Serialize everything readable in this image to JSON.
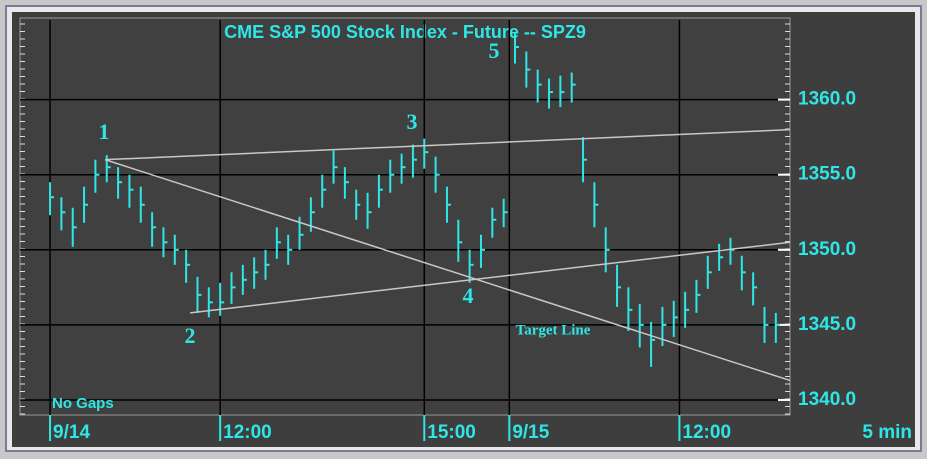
{
  "chart_data": {
    "type": "ohlc",
    "title": "CME  S&P  500  Stock  Index  -  Future  --  SPZ9",
    "x_unit": "5  min",
    "color": "#2fe6e6",
    "grid": true,
    "x": [
      0,
      2,
      4,
      6,
      8,
      10,
      12,
      14,
      16,
      18,
      20,
      22,
      24,
      26,
      28,
      30,
      32,
      34,
      36,
      38,
      40,
      42,
      44,
      46,
      48,
      50,
      52,
      54,
      56,
      58,
      60,
      62,
      64,
      66,
      68,
      70,
      72,
      74,
      76,
      78,
      80,
      82,
      84,
      86,
      88,
      90,
      92,
      94,
      96,
      98,
      100,
      102,
      104,
      106,
      108,
      110,
      112,
      114,
      116,
      118,
      120,
      122,
      124,
      126,
      128
    ],
    "high": [
      1354.5,
      1353.5,
      1352.8,
      1354.2,
      1356,
      1356.3,
      1355.5,
      1355,
      1354.2,
      1352.5,
      1351.5,
      1351,
      1350,
      1348.2,
      1347.5,
      1347.8,
      1348.5,
      1349,
      1349.5,
      1350,
      1351.5,
      1351,
      1352.2,
      1353.5,
      1355,
      1356.6,
      1355.5,
      1354,
      1353.8,
      1355,
      1356,
      1356.4,
      1357,
      1357.4,
      1356.2,
      1354.2,
      1352,
      1350,
      1351,
      1352.8,
      1353.4,
      1364.4,
      1363.2,
      1362,
      1361.4,
      1361.6,
      1361.8,
      1357.5,
      1354.5,
      1351.5,
      1349,
      1347.5,
      1346.4,
      1345.2,
      1346.2,
      1346.6,
      1347.2,
      1348,
      1349.6,
      1350.4,
      1350.8,
      1349.6,
      1348.5,
      1346.2,
      1345.8
    ],
    "low": [
      1352.3,
      1351.3,
      1350.2,
      1351.8,
      1353.8,
      1354.5,
      1353.4,
      1352.8,
      1351.8,
      1350.2,
      1349.5,
      1349,
      1347.8,
      1345.8,
      1345.5,
      1345.6,
      1346.4,
      1347,
      1347.4,
      1348,
      1349.4,
      1349,
      1350,
      1351.2,
      1352.8,
      1354.4,
      1353.4,
      1352,
      1351.4,
      1352.8,
      1353.8,
      1354.4,
      1354.8,
      1355.4,
      1353.8,
      1351.8,
      1349.2,
      1347.8,
      1348.8,
      1350.8,
      1351.5,
      1362.4,
      1360.8,
      1359.8,
      1359.4,
      1359.5,
      1359.8,
      1354.5,
      1351.5,
      1348.5,
      1346.2,
      1344.6,
      1343.5,
      1342.2,
      1343.6,
      1344.2,
      1344.8,
      1345.8,
      1347.4,
      1348.6,
      1349,
      1347.3,
      1346.3,
      1343.8,
      1343.8
    ],
    "close": [
      1353.5,
      1352.5,
      1351.5,
      1353,
      1355,
      1355.5,
      1354.5,
      1354,
      1353,
      1351.5,
      1350.5,
      1350,
      1349,
      1347,
      1346.5,
      1346.5,
      1347.5,
      1348,
      1348.5,
      1349,
      1350.5,
      1350,
      1351,
      1352.5,
      1354,
      1355.5,
      1354.5,
      1353,
      1352.5,
      1354,
      1355,
      1355.5,
      1356,
      1356.5,
      1355,
      1353,
      1350.5,
      1349,
      1350,
      1352,
      1352.5,
      1363.5,
      1362,
      1361,
      1360.5,
      1360.5,
      1361,
      1356,
      1353,
      1350,
      1347.5,
      1346,
      1345,
      1344,
      1345,
      1345.5,
      1346,
      1347,
      1348.5,
      1349.5,
      1350,
      1348.5,
      1347.5,
      1345,
      1345
    ],
    "xlim": [
      -5.3,
      130.5
    ],
    "xticks": [
      {
        "value": 0,
        "label": "9/14"
      },
      {
        "value": 30,
        "label": "12:00"
      },
      {
        "value": 66,
        "label": "15:00"
      },
      {
        "value": 81,
        "label": "9/15"
      },
      {
        "value": 111,
        "label": "12:00"
      }
    ],
    "ylim": [
      1339,
      1365.3
    ],
    "yticks": [
      {
        "value": 1340,
        "label": "1340.0"
      },
      {
        "value": 1345,
        "label": "1345.0"
      },
      {
        "value": 1350,
        "label": "1350.0"
      },
      {
        "value": 1355,
        "label": "1355.0"
      },
      {
        "value": 1360,
        "label": "1360.0"
      }
    ],
    "lines": [
      {
        "x": [
          9.7,
          130.5
        ],
        "y": [
          1356,
          1358
        ]
      },
      {
        "x": [
          24.7,
          130.5
        ],
        "y": [
          1345.8,
          1350.5
        ]
      },
      {
        "x": [
          9.7,
          130.5
        ],
        "y": [
          1356,
          1341.3
        ]
      }
    ],
    "annotations": [
      "1",
      "2",
      "3",
      "4",
      "5",
      "Target Line",
      "No Gaps"
    ]
  }
}
